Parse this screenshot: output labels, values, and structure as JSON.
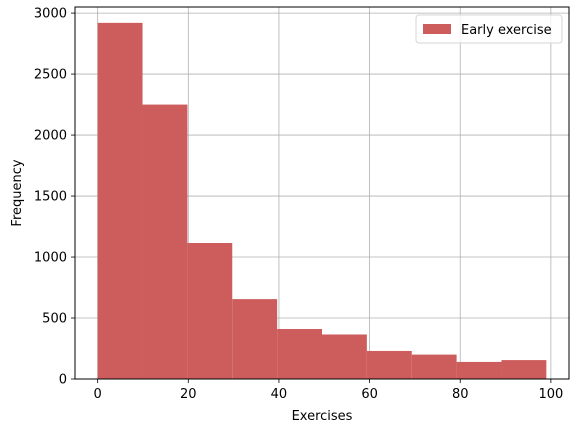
{
  "chart_data": {
    "type": "bar",
    "subtype": "histogram",
    "title": "",
    "xlabel": "Exercises",
    "ylabel": "Frequency",
    "xlim": [
      -5,
      104
    ],
    "ylim": [
      0,
      3050
    ],
    "x_ticks": [
      0,
      20,
      40,
      60,
      80,
      100
    ],
    "y_ticks": [
      0,
      500,
      1000,
      1500,
      2000,
      2500,
      3000
    ],
    "grid": true,
    "legend_position": "upper-right",
    "series": [
      {
        "name": "Early exercise",
        "color": "#cd5c5c",
        "bins": [
          {
            "start": 0,
            "end": 9.9,
            "value": 2920
          },
          {
            "start": 9.9,
            "end": 19.8,
            "value": 2250
          },
          {
            "start": 19.8,
            "end": 29.7,
            "value": 1115
          },
          {
            "start": 29.7,
            "end": 39.6,
            "value": 655
          },
          {
            "start": 39.6,
            "end": 49.5,
            "value": 410
          },
          {
            "start": 49.5,
            "end": 59.4,
            "value": 365
          },
          {
            "start": 59.4,
            "end": 69.3,
            "value": 230
          },
          {
            "start": 69.3,
            "end": 79.2,
            "value": 200
          },
          {
            "start": 79.2,
            "end": 89.1,
            "value": 140
          },
          {
            "start": 89.1,
            "end": 99,
            "value": 155
          }
        ]
      }
    ]
  }
}
